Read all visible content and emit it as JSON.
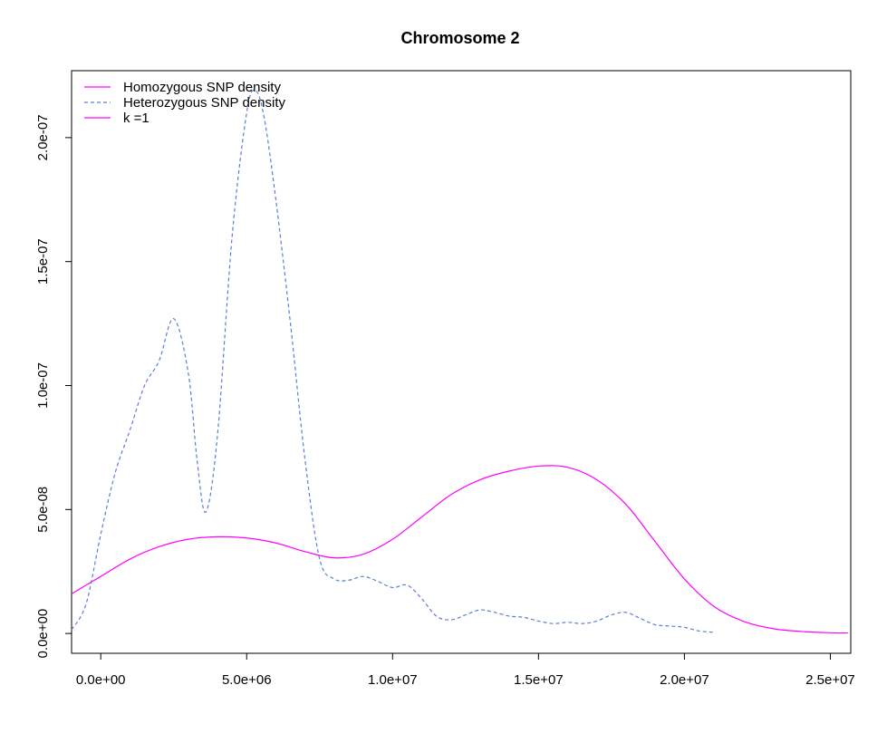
{
  "chart_data": {
    "type": "line",
    "title": "Chromosome 2",
    "xlabel": "",
    "ylabel": "",
    "xlim": [
      -1000000,
      25700000
    ],
    "ylim": [
      -8e-09,
      2.27e-07
    ],
    "x_ticks": [
      0,
      5000000,
      10000000,
      15000000,
      20000000,
      25000000
    ],
    "x_tick_labels": [
      "0.0e+00",
      "5.0e+06",
      "1.0e+07",
      "1.5e+07",
      "2.0e+07",
      "2.5e+07"
    ],
    "y_ticks": [
      0,
      5e-08,
      1e-07,
      1.5e-07,
      2e-07
    ],
    "y_tick_labels": [
      "0.0e+00",
      "5.0e-08",
      "1.0e-07",
      "1.5e-07",
      "2.0e-07"
    ],
    "grid": false,
    "legend_position": "top-left",
    "series": [
      {
        "name": "Homozygous SNP density",
        "color": "#ff00ff",
        "dash": "solid",
        "x": [
          -1000000,
          0,
          1000000,
          2000000,
          3000000,
          4000000,
          5000000,
          6000000,
          7000000,
          8000000,
          9000000,
          10000000,
          11000000,
          12000000,
          13000000,
          14000000,
          15000000,
          16000000,
          17000000,
          18000000,
          19000000,
          20000000,
          21000000,
          22000000,
          23000000,
          24000000,
          25000000,
          25600000
        ],
        "values": [
          1.6e-08,
          2.3e-08,
          3e-08,
          3.5e-08,
          3.8e-08,
          3.9e-08,
          3.85e-08,
          3.65e-08,
          3.3e-08,
          3.05e-08,
          3.2e-08,
          3.8e-08,
          4.7e-08,
          5.6e-08,
          6.2e-08,
          6.55e-08,
          6.75e-08,
          6.7e-08,
          6.2e-08,
          5.2e-08,
          3.7e-08,
          2.2e-08,
          1.1e-08,
          5e-09,
          2e-09,
          8e-10,
          3e-10,
          2e-10
        ]
      },
      {
        "name": "Heterozygous SNP density",
        "color": "#5b7fd6",
        "dash": "dashed",
        "x": [
          -1000000,
          -500000,
          0,
          500000,
          1000000,
          1500000,
          2000000,
          2500000,
          3000000,
          3300000,
          3600000,
          4000000,
          4500000,
          5000000,
          5300000,
          5600000,
          6000000,
          6500000,
          7000000,
          7500000,
          8000000,
          8500000,
          9000000,
          9500000,
          10000000,
          10500000,
          11000000,
          11500000,
          12000000,
          12500000,
          13000000,
          13500000,
          14000000,
          14500000,
          15000000,
          15500000,
          16000000,
          16500000,
          17000000,
          17500000,
          18000000,
          18500000,
          19000000,
          19500000,
          20000000,
          20500000,
          21000000
        ],
        "values": [
          1.5e-09,
          1.2e-08,
          4e-08,
          6.5e-08,
          8.2e-08,
          1e-07,
          1.1e-07,
          1.27e-07,
          1.05e-07,
          7e-08,
          4.9e-08,
          8e-08,
          1.6e-07,
          2.1e-07,
          2.19e-07,
          2.08e-07,
          1.75e-07,
          1.25e-07,
          7e-08,
          3e-08,
          2.2e-08,
          2.15e-08,
          2.3e-08,
          2.1e-08,
          1.85e-08,
          1.95e-08,
          1.4e-08,
          7e-09,
          5.5e-09,
          7.5e-09,
          9.5e-09,
          8.5e-09,
          7e-09,
          6.5e-09,
          5e-09,
          4e-09,
          4.5e-09,
          4e-09,
          5e-09,
          7.5e-09,
          8.5e-09,
          6e-09,
          3.5e-09,
          3e-09,
          2.5e-09,
          1e-09,
          5e-10
        ]
      }
    ],
    "legend": [
      {
        "label": "Homozygous SNP density",
        "color": "#ff00ff",
        "dash": "solid"
      },
      {
        "label": "Heterozygous SNP density",
        "color": "#5b7fd6",
        "dash": "dashed"
      },
      {
        "label": "k =1",
        "color": "#ff00ff",
        "dash": "solid"
      }
    ]
  }
}
